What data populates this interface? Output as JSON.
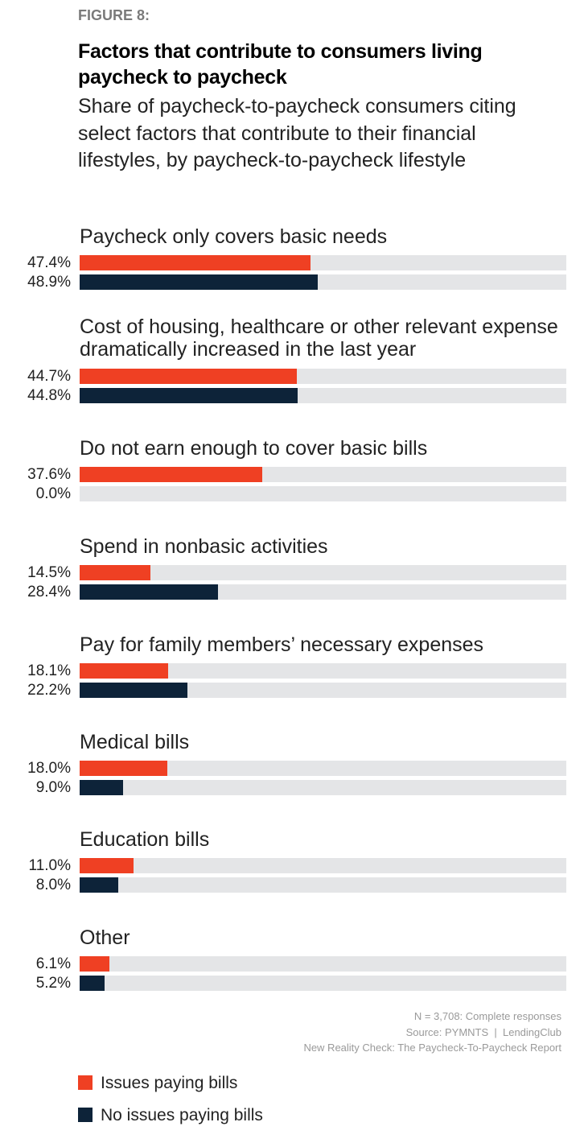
{
  "figure_label": "FIGURE 8:",
  "chart_data": {
    "type": "bar",
    "orientation": "horizontal",
    "title": "Factors that contribute to consumers living paycheck to paycheck",
    "subtitle": "Share of paycheck-to-paycheck consumers citing select factors that contribute to their financial lifestyles, by paycheck-to-paycheck lifestyle",
    "xlim": [
      0,
      100
    ],
    "unit": "%",
    "categories": [
      "Paycheck only covers basic needs",
      "Cost of housing, healthcare or other relevant expense dramatically increased in the last year",
      "Do not earn enough to cover basic bills",
      "Spend in nonbasic activities",
      "Pay for family members’ necessary expenses",
      "Medical bills",
      "Education bills",
      "Other"
    ],
    "series": [
      {
        "name": "Issues paying bills",
        "color": "#ef4023",
        "values": [
          47.4,
          44.7,
          37.6,
          14.5,
          18.1,
          18.0,
          11.0,
          6.1
        ],
        "labels": [
          "47.4%",
          "44.7%",
          "37.6%",
          "14.5%",
          "18.1%",
          "18.0%",
          "11.0%",
          "6.1%"
        ]
      },
      {
        "name": "No issues paying bills",
        "color": "#0d2339",
        "values": [
          48.9,
          44.8,
          0.0,
          28.4,
          22.2,
          9.0,
          8.0,
          5.2
        ],
        "labels": [
          "48.9%",
          "44.8%",
          "0.0%",
          "28.4%",
          "22.2%",
          "9.0%",
          "8.0%",
          "5.2%"
        ]
      }
    ],
    "legend": "bottom-left",
    "track_color": "#e4e5e7"
  },
  "footer": {
    "n": "N = 3,708: Complete responses",
    "source": "Source: PYMNTS  |  LendingClub",
    "report": "New Reality Check: The Paycheck-To-Paycheck Report"
  }
}
